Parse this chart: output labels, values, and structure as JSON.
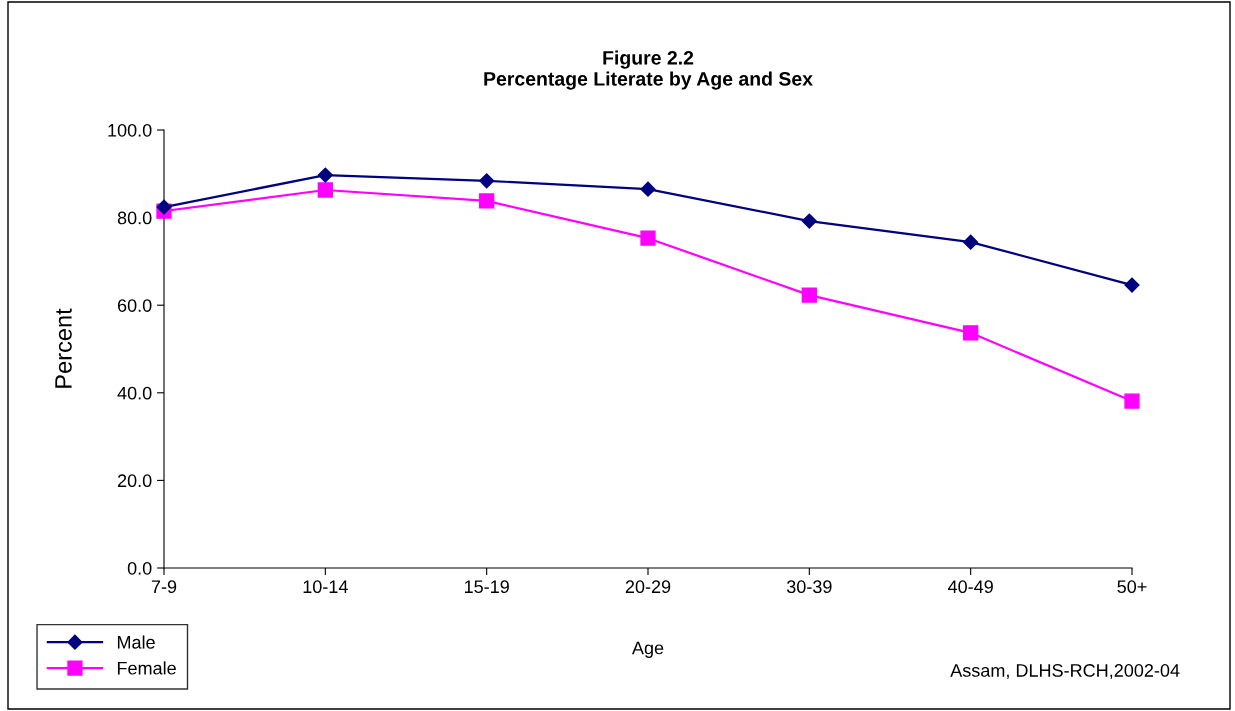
{
  "chart_data": {
    "type": "line",
    "title": "Figure 2.2\nPercentage Literate by Age and Sex",
    "xlabel": "Age",
    "ylabel": "Percent",
    "categories": [
      "7-9",
      "10-14",
      "15-19",
      "20-29",
      "30-39",
      "40-49",
      "50+"
    ],
    "series": [
      {
        "name": "Male",
        "color": "#000080",
        "marker": "diamond",
        "values": [
          82.4,
          89.7,
          88.4,
          86.5,
          79.2,
          74.4,
          64.6
        ]
      },
      {
        "name": "Female",
        "color": "#ff00ff",
        "marker": "square",
        "values": [
          81.5,
          86.3,
          83.8,
          75.3,
          62.3,
          53.7,
          38.1
        ]
      }
    ],
    "ylim": [
      0,
      100
    ],
    "yticks": [
      {
        "value": 0,
        "label": "0.0"
      },
      {
        "value": 20,
        "label": "20.0"
      },
      {
        "value": 40,
        "label": "40.0"
      },
      {
        "value": 60,
        "label": "60.0"
      },
      {
        "value": 80,
        "label": "80.0"
      },
      {
        "value": 100,
        "label": "100.0"
      }
    ],
    "grid": false,
    "legend": "bottom left",
    "annotations": [
      "Assam, DLHS-RCH,2002-04"
    ]
  }
}
